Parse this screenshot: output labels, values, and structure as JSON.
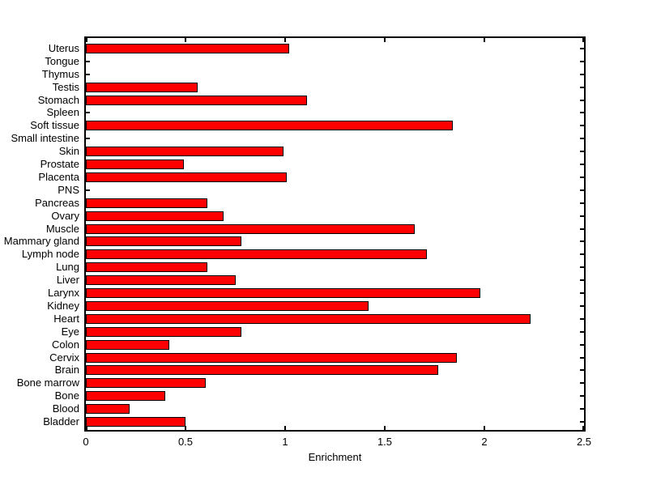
{
  "chart_data": {
    "type": "bar",
    "orientation": "horizontal",
    "xlabel": "Enrichment",
    "xlim": [
      0,
      2.5
    ],
    "xticks": [
      0,
      0.5,
      1,
      1.5,
      2,
      2.5
    ],
    "xtick_labels": [
      "0",
      "0.5",
      "1",
      "1.5",
      "2",
      "2.5"
    ],
    "categories": [
      "Uterus",
      "Tongue",
      "Thymus",
      "Testis",
      "Stomach",
      "Spleen",
      "Soft tissue",
      "Small intestine",
      "Skin",
      "Prostate",
      "Placenta",
      "PNS",
      "Pancreas",
      "Ovary",
      "Muscle",
      "Mammary gland",
      "Lymph node",
      "Lung",
      "Liver",
      "Larynx",
      "Kidney",
      "Heart",
      "Eye",
      "Colon",
      "Cervix",
      "Brain",
      "Bone marrow",
      "Bone",
      "Blood",
      "Bladder"
    ],
    "values": [
      1.02,
      0,
      0,
      0.56,
      1.11,
      0,
      1.84,
      0,
      0.99,
      0.49,
      1.01,
      0,
      0.61,
      0.69,
      1.65,
      0.78,
      1.71,
      0.61,
      0.75,
      1.98,
      1.42,
      2.23,
      0.78,
      0.42,
      1.86,
      1.77,
      0.6,
      0.4,
      0.22,
      0.5
    ],
    "bar_fill_color": "#ff0000",
    "bar_edge_color": "#000000",
    "axis_color": "#000000",
    "grid": false
  }
}
